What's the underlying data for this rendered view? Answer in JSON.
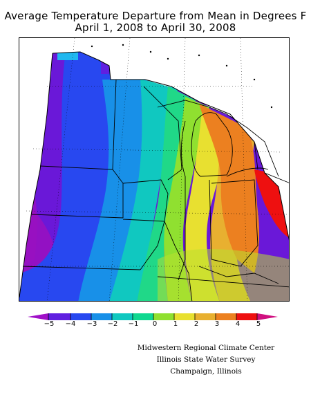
{
  "title": {
    "line1": "Average Temperature Departure from Mean in Degrees F",
    "line2": "April 1, 2008 to April 30, 2008"
  },
  "legend": {
    "ticks": [
      "−5",
      "−4",
      "−3",
      "−2",
      "−1",
      "0",
      "1",
      "2",
      "3",
      "4",
      "5"
    ],
    "colors": [
      "#8a10c8",
      "#6020e0",
      "#2848f0",
      "#1890e8",
      "#10c8c0",
      "#10d890",
      "#90e030",
      "#e8e030",
      "#e8b030",
      "#ec8020",
      "#ee1010",
      "#d01080"
    ]
  },
  "credits": {
    "line1": "Midwestern Regional Climate Center",
    "line2": "Illinois State Water Survey",
    "line3": "Champaign, Illinois"
  },
  "map": {
    "region": "Midwest United States",
    "variable": "Average Temperature Departure from Mean",
    "units": "Degrees F",
    "palette_note": "cool colors west/northwest (negative), warm colors east/Michigan/Ohio (positive)"
  }
}
